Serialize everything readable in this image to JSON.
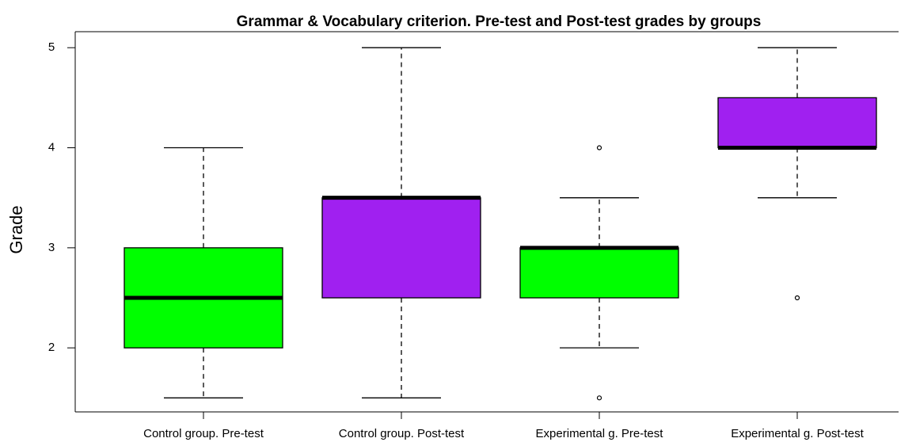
{
  "chart_data": {
    "type": "box",
    "title": "Grammar & Vocabulary criterion. Pre-test and Post-test grades by groups",
    "ylabel": "Grade",
    "categories": [
      "Control group. Pre-test",
      "Control group. Post-test",
      "Experimental g. Pre-test",
      "Experimental g. Post-test"
    ],
    "colors": [
      "#00ff00",
      "#a020f0",
      "#00ff00",
      "#a020f0"
    ],
    "boxes": [
      {
        "whislo": 1.5,
        "q1": 2,
        "med": 2.5,
        "q3": 3,
        "whishi": 4,
        "fliers": []
      },
      {
        "whislo": 1.5,
        "q1": 2.5,
        "med": 3.5,
        "q3": 3.5,
        "whishi": 5,
        "fliers": []
      },
      {
        "whislo": 2,
        "q1": 2.5,
        "med": 3,
        "q3": 3,
        "whishi": 3.5,
        "fliers": [
          4,
          1.5
        ]
      },
      {
        "whislo": 3.5,
        "q1": 4,
        "med": 4,
        "q3": 4.5,
        "whishi": 5,
        "fliers": [
          2.5
        ]
      }
    ],
    "ylim": [
      1.36,
      5.16
    ],
    "yticks": [
      2,
      3,
      4,
      5
    ]
  }
}
